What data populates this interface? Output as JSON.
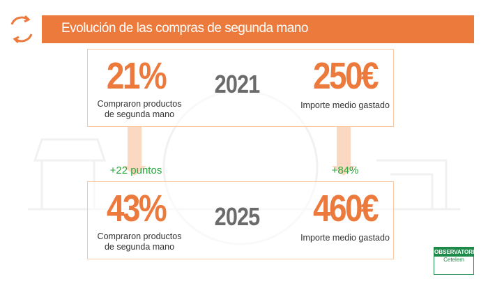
{
  "header": {
    "title": "Evolución de las compras de segunda mano"
  },
  "rows": [
    {
      "percent": "21%",
      "percent_caption": "Compraron productos de segunda mano",
      "year": "2021",
      "amount": "250€",
      "amount_caption": "Importe medio gastado"
    },
    {
      "percent": "43%",
      "percent_caption": "Compraron productos de segunda mano",
      "year": "2025",
      "amount": "460€",
      "amount_caption": "Importe medio gastado"
    }
  ],
  "changes": {
    "percent": "+22 puntos",
    "amount": "+84%"
  },
  "logo": {
    "name": "OBSERVATORIO",
    "brand": "Cetelem"
  }
}
